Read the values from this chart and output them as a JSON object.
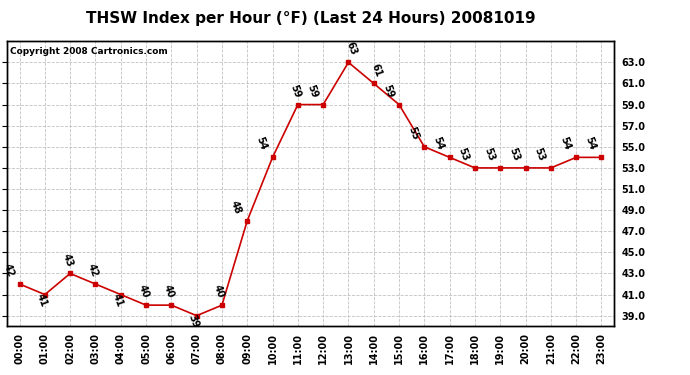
{
  "title": "THSW Index per Hour (°F) (Last 24 Hours) 20081019",
  "copyright": "Copyright 2008 Cartronics.com",
  "hours": [
    0,
    1,
    2,
    3,
    4,
    5,
    6,
    7,
    8,
    9,
    10,
    11,
    12,
    13,
    14,
    15,
    16,
    17,
    18,
    19,
    20,
    21,
    22,
    23
  ],
  "values": [
    42,
    41,
    43,
    42,
    41,
    40,
    40,
    39,
    40,
    48,
    54,
    59,
    59,
    63,
    61,
    59,
    55,
    54,
    53,
    53,
    53,
    53,
    54,
    54
  ],
  "hour_labels": [
    "00:00",
    "01:00",
    "02:00",
    "03:00",
    "04:00",
    "05:00",
    "06:00",
    "07:00",
    "08:00",
    "09:00",
    "10:00",
    "11:00",
    "12:00",
    "13:00",
    "14:00",
    "15:00",
    "16:00",
    "17:00",
    "18:00",
    "19:00",
    "20:00",
    "21:00",
    "22:00",
    "23:00"
  ],
  "ylim_min": 38.0,
  "ylim_max": 65.0,
  "ytick_values": [
    39,
    41,
    43,
    45,
    47,
    49,
    51,
    53,
    55,
    57,
    59,
    61,
    63
  ],
  "line_color": "#cc0000",
  "marker_color": "#cc0000",
  "bg_color": "#ffffff",
  "grid_color": "#bbbbbb",
  "title_fontsize": 11,
  "tick_fontsize": 7,
  "annot_fontsize": 7
}
